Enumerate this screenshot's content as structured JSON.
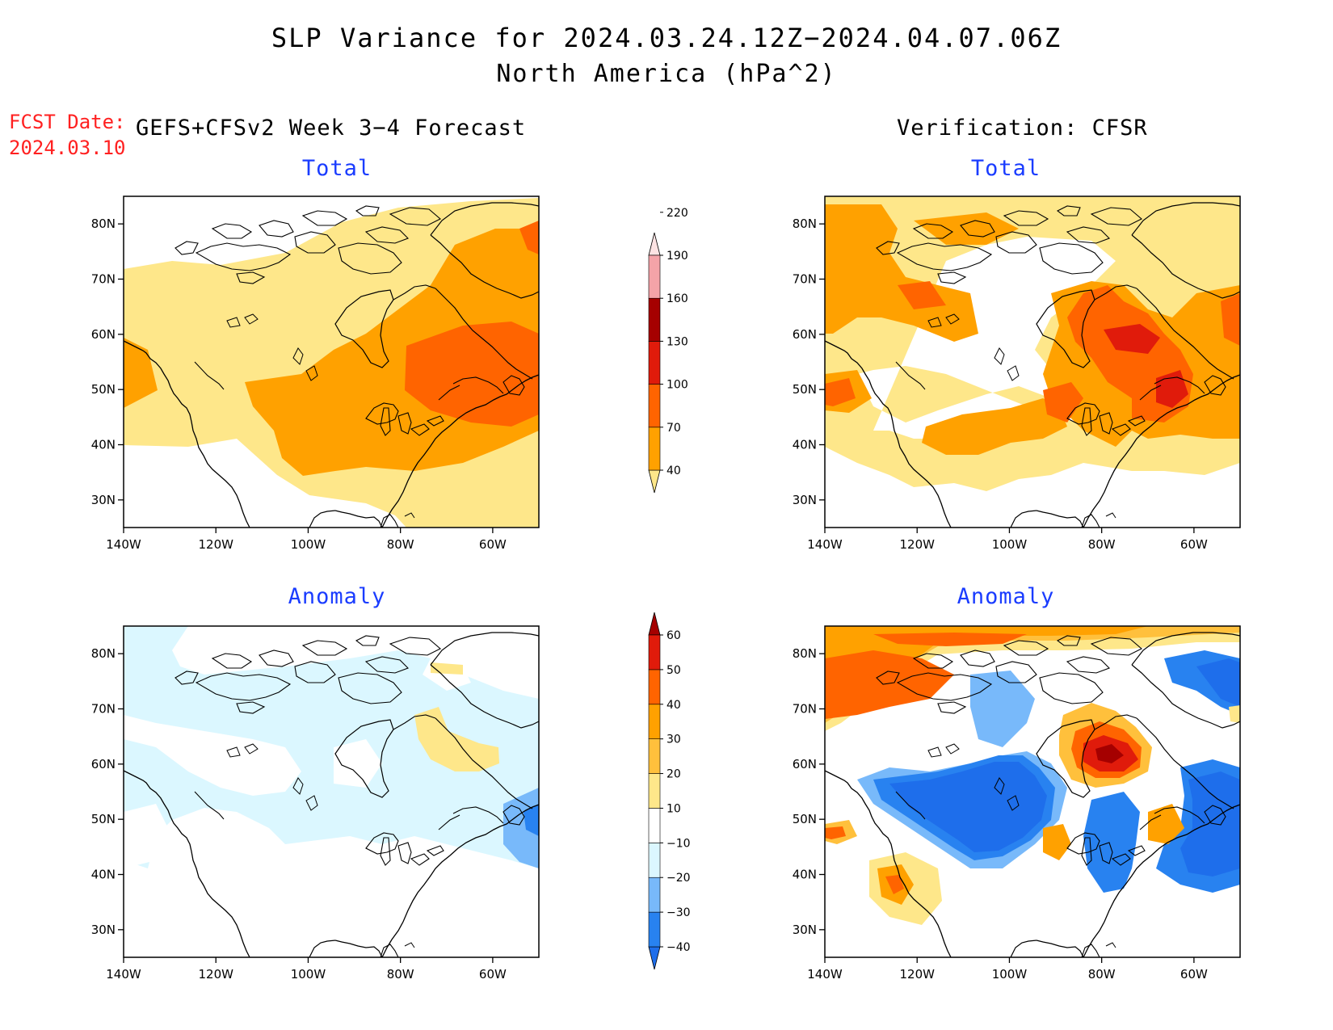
{
  "title": "SLP Variance for 2024.03.24.12Z−2024.04.07.06Z",
  "subtitle": "North America (hPa^2)",
  "fcst_label": "FCST Date:",
  "fcst_date": "2024.03.10",
  "left_header": "GEFS+CFSv2 Week 3−4 Forecast",
  "right_header": "Verification: CFSR",
  "panels": {
    "fc_total": "Total",
    "vf_total": "Total",
    "fc_anom": "Anomaly",
    "vf_anom": "Anomaly"
  },
  "axes": {
    "lon_ticks": [
      "140W",
      "120W",
      "100W",
      "80W",
      "60W"
    ],
    "lat_ticks": [
      "80N",
      "70N",
      "60N",
      "50N",
      "40N",
      "30N"
    ]
  },
  "colorbar_total": {
    "labels": [
      "40",
      "70",
      "100",
      "130",
      "160",
      "190",
      "220"
    ],
    "colors": [
      "#fee78a",
      "#ffa100",
      "#ff6400",
      "#e01b0b",
      "#a50000",
      "#f4a3a8",
      "#fde3e3"
    ]
  },
  "colorbar_anom": {
    "labels": [
      "−40",
      "−30",
      "−20",
      "−10",
      "10",
      "20",
      "30",
      "40",
      "50",
      "60"
    ],
    "colors": [
      "#1e6eeb",
      "#2882f0",
      "#78b9fa",
      "#dbf7ff",
      "#ffffff",
      "#fee78a",
      "#ffc03c",
      "#ffa100",
      "#ff6400",
      "#e01b0b",
      "#a50000"
    ]
  },
  "shading_colors": {
    "yellow": "#fee78a",
    "orange": "#ffa100",
    "dark_orange": "#ff6400",
    "red": "#e01b0b",
    "dark_red": "#a50000",
    "pale_blue": "#dbf7ff",
    "light_blue": "#78b9fa",
    "blue": "#2882f0",
    "dark_blue": "#1e6eeb",
    "light_orange": "#ffc03c"
  }
}
